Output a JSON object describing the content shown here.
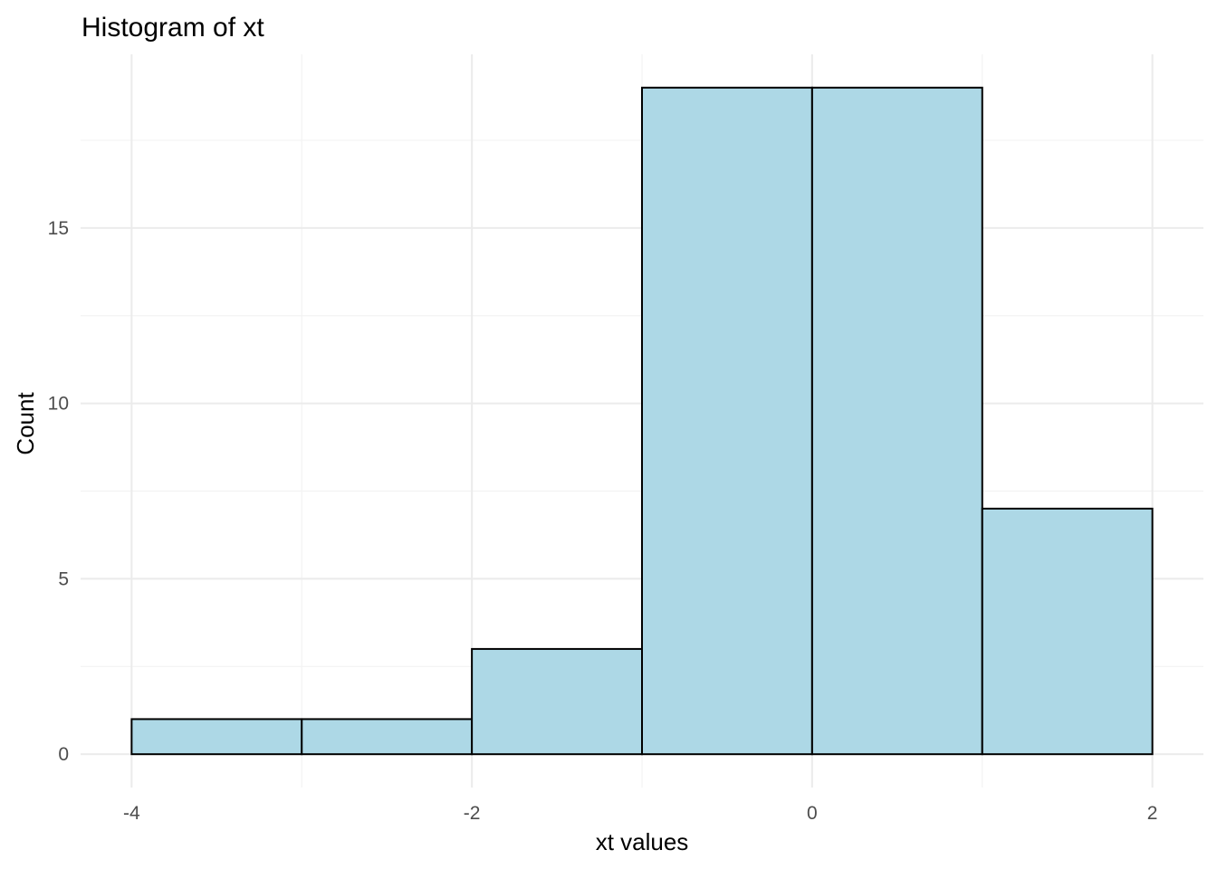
{
  "chart_data": {
    "type": "bar",
    "title": "Histogram of xt",
    "xlabel": "xt values",
    "ylabel": "Count",
    "bins": [
      {
        "start": -4,
        "end": -3,
        "count": 1
      },
      {
        "start": -3,
        "end": -2,
        "count": 1
      },
      {
        "start": -2,
        "end": -1,
        "count": 3
      },
      {
        "start": -1,
        "end": 0,
        "count": 19
      },
      {
        "start": 0,
        "end": 1,
        "count": 19
      },
      {
        "start": 1,
        "end": 2,
        "count": 7
      }
    ],
    "xlim": [
      -4.3,
      2.3
    ],
    "ylim": [
      -0.95,
      19.95
    ],
    "x_ticks": [
      -4,
      -2,
      0,
      2
    ],
    "x_tick_labels": [
      "-4",
      "-2",
      "0",
      "2"
    ],
    "y_ticks": [
      0,
      5,
      10,
      15
    ],
    "y_tick_labels": [
      "0",
      "5",
      "10",
      "15"
    ],
    "grid": true,
    "legend": "none",
    "bar_fill": "#add8e6",
    "bar_outline": "#000000",
    "grid_color": "#ebebeb"
  }
}
